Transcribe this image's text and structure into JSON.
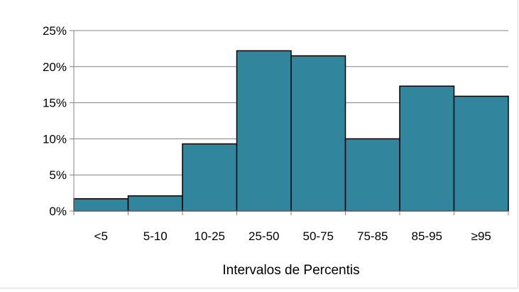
{
  "chart_data": {
    "type": "bar",
    "categories": [
      "<5",
      "5-10",
      "10-25",
      "25-50",
      "50-75",
      "75-85",
      "85-95",
      "≥95"
    ],
    "values": [
      1.7,
      2.1,
      9.3,
      22.2,
      21.5,
      10.0,
      17.3,
      15.9
    ],
    "value_unit": "%",
    "title": "",
    "xlabel": "Intervalos de Percentis",
    "ylabel": "",
    "ylim": [
      0,
      25
    ],
    "yticks": [
      0,
      5,
      10,
      15,
      20,
      25
    ],
    "ytick_labels": [
      "0%",
      "5%",
      "10%",
      "15%",
      "20%",
      "25%"
    ],
    "grid": true,
    "legend": "none",
    "bar_color": "#31859c",
    "bar_edge_color": "#000000",
    "grid_color": "#808080"
  }
}
